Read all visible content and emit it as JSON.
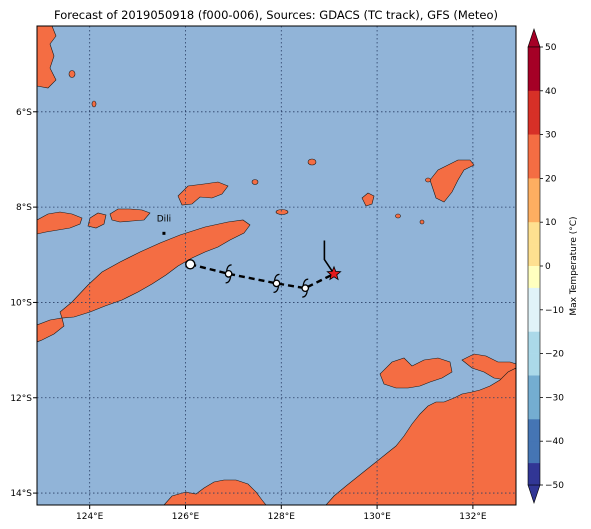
{
  "title": "Forecast of 2019050918 (f000-006), Sources: GDACS (TC track), GFS (Meteo)",
  "map": {
    "lon_range": [
      122.9,
      132.9
    ],
    "lat_range": [
      -14.25,
      -4.2
    ],
    "ocean_color": "#91b4d8",
    "land_color": "#f46d43",
    "x_ticks": [
      {
        "value": 124,
        "label": "124°E"
      },
      {
        "value": 126,
        "label": "126°E"
      },
      {
        "value": 128,
        "label": "128°E"
      },
      {
        "value": 130,
        "label": "130°E"
      },
      {
        "value": 132,
        "label": "132°E"
      }
    ],
    "y_ticks": [
      {
        "value": -6,
        "label": "6°S"
      },
      {
        "value": -8,
        "label": "8°S"
      },
      {
        "value": -10,
        "label": "10°S"
      },
      {
        "value": -12,
        "label": "12°S"
      },
      {
        "value": -14,
        "label": "14°S"
      }
    ],
    "city": {
      "name": "Dili",
      "lon": 125.55,
      "lat": -8.55
    }
  },
  "track": {
    "points": [
      {
        "lon": 126.1,
        "lat": -9.2,
        "kind": "low"
      },
      {
        "lon": 126.9,
        "lat": -9.4,
        "kind": "storm"
      },
      {
        "lon": 127.9,
        "lat": -9.6,
        "kind": "storm"
      },
      {
        "lon": 128.5,
        "lat": -9.7,
        "kind": "storm"
      },
      {
        "lon": 129.1,
        "lat": -9.4,
        "kind": "current"
      }
    ],
    "past_path": [
      [
        128.9,
        -8.7
      ],
      [
        128.9,
        -9.1
      ],
      [
        129.1,
        -9.4
      ]
    ]
  },
  "colorbar": {
    "label": "Max Temperature (°C)",
    "ticks": [
      "50",
      "40",
      "30",
      "20",
      "10",
      "0",
      "−10",
      "−20",
      "−30",
      "−40",
      "−50"
    ],
    "colors": [
      "#a50026",
      "#d73027",
      "#f46d43",
      "#fdae61",
      "#fee090",
      "#ffffbf",
      "#e0f3f8",
      "#abd9e9",
      "#74add1",
      "#4575b4",
      "#313695"
    ]
  }
}
